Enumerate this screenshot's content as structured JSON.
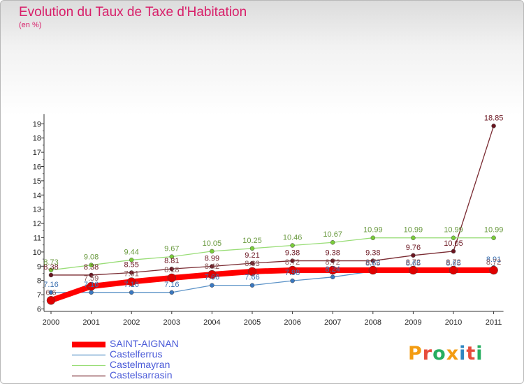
{
  "title": "Evolution du Taux de Taxe d'Habitation",
  "unit": "(en %)",
  "logo": {
    "text": "Proxiti",
    "colors": [
      "#f39c12",
      "#e74c3c",
      "#27ae60",
      "#f39c12",
      "#2e86c1",
      "#e74c3c",
      "#27ae60"
    ]
  },
  "chart_data": {
    "type": "line",
    "categories": [
      "2000",
      "2001",
      "2002",
      "2003",
      "2004",
      "2005",
      "2006",
      "2007",
      "2008",
      "2009",
      "2010",
      "2011"
    ],
    "ylim": [
      6,
      19
    ],
    "yticks": [
      6,
      7,
      8,
      9,
      10,
      11,
      12,
      13,
      14,
      15,
      16,
      17,
      18,
      19
    ],
    "grid": false,
    "legend_position": "bottom-left",
    "series": [
      {
        "name": "Castelsarrasin",
        "color": "#7a2b32",
        "marker": "#6a1520",
        "width": 1.3,
        "values": [
          8.38,
          8.38,
          8.55,
          8.81,
          8.99,
          9.21,
          9.38,
          9.38,
          9.38,
          9.76,
          10.05,
          18.85
        ],
        "labels": [
          "8.38",
          "8.38",
          "8.55",
          "8.81",
          "8.99",
          "9.21",
          "9.38",
          "9.38",
          "9.38",
          "9.76",
          "10.05",
          "18.85"
        ],
        "label_color": "#6a1520"
      },
      {
        "name": "Castelmayran",
        "color": "#99dd77",
        "marker": "#7acc3a",
        "width": 1.3,
        "values": [
          8.73,
          9.08,
          9.44,
          9.67,
          10.05,
          10.25,
          10.46,
          10.67,
          10.99,
          10.99,
          10.99,
          10.99
        ],
        "labels": [
          "8.73",
          "9.08",
          "9.44",
          "9.67",
          "10.05",
          "10.25",
          "10.46",
          "10.67",
          "10.99",
          "10.99",
          "10.99",
          "10.99"
        ],
        "label_color": "#6a9a40"
      },
      {
        "name": "Castelferrus",
        "color": "#5b92c7",
        "marker": "#3a78c0",
        "width": 1.3,
        "values": [
          7.16,
          7.16,
          7.16,
          7.16,
          7.66,
          7.66,
          7.98,
          8.24,
          8.65,
          8.65,
          8.65,
          8.91
        ],
        "labels": [
          "7.16",
          "7.16",
          "7.16",
          "7.16",
          "7.66",
          "7.66",
          "7.98",
          "8.24",
          "8.65",
          "8.65",
          "8.65",
          "8.91"
        ],
        "label_color": "#3a70b0"
      },
      {
        "name": "SAINT-AIGNAN",
        "color": "#ff0000",
        "marker": "#e00000",
        "width": 8,
        "values": [
          6.6,
          7.59,
          7.91,
          8.18,
          8.42,
          8.63,
          8.72,
          8.72,
          8.72,
          8.72,
          8.72,
          8.72
        ],
        "labels": [
          "6.6",
          "7.59",
          "7.91",
          "8.18",
          "8.42",
          "8.63",
          "8.72",
          "8.72",
          "8.72",
          "8.72",
          "8.72",
          "8.72"
        ],
        "label_color": "#8a5a5a"
      }
    ]
  }
}
